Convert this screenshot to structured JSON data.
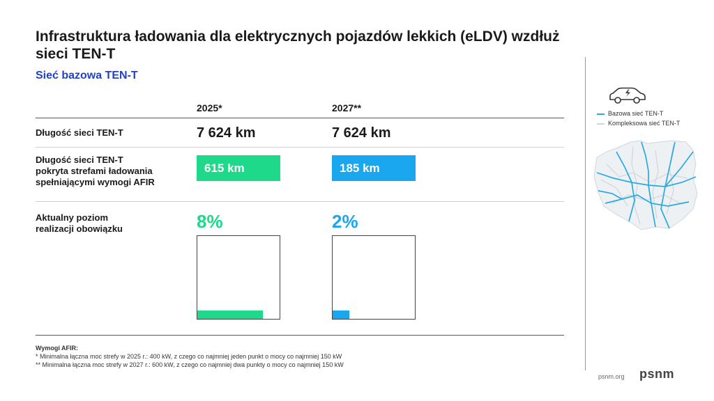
{
  "title": "Infrastruktura ładowania dla elektrycznych pojazdów lekkich (eLDV) wzdłuż sieci TEN-T",
  "subtitle": "Sieć bazowa TEN-T",
  "columns": [
    "2025*",
    "2027**"
  ],
  "rows": {
    "length": {
      "label": "Długość sieci TEN-T",
      "values": [
        "7 624 km",
        "7 624 km"
      ]
    },
    "covered": {
      "label_lines": [
        "Długość sieci TEN-T",
        "pokryta strefami ładowania",
        "spełniającymi wymogi AFIR"
      ],
      "values": [
        "615 km",
        "185 km"
      ]
    },
    "level": {
      "label_lines": [
        "Aktualny poziom",
        "realizacji obowiązku"
      ],
      "values": [
        "8%",
        "2%"
      ],
      "fractions": [
        0.08,
        0.02
      ]
    }
  },
  "colors": {
    "green": "#1ed98a",
    "blue": "#1aa7ef",
    "subtitle": "#2142c4",
    "map_core": "#29a9e0",
    "map_comprehensive": "#d0d6dc"
  },
  "legend": [
    {
      "label": "Bazowa sieć TEN-T",
      "color": "#29a9e0"
    },
    {
      "label": "Kompleksowa sieć TEN-T",
      "color": "#d0d6dc"
    }
  ],
  "icons": {
    "vehicle": "electric-car-icon",
    "map": "poland-map"
  },
  "notes": {
    "heading": "Wymogi AFIR:",
    "lines": [
      "* Minimalna łączna moc strefy w 2025 r.: 400 kW, z czego co najmniej jeden punkt o mocy co najmniej 150 kW",
      "** Minimalna łączna moc strefy w 2027 r.: 600 kW, z czego co najmniej dwa punkty o mocy co najmniej 150 kW"
    ]
  },
  "footer": {
    "site": "psnm.org",
    "logo": "psnm"
  }
}
